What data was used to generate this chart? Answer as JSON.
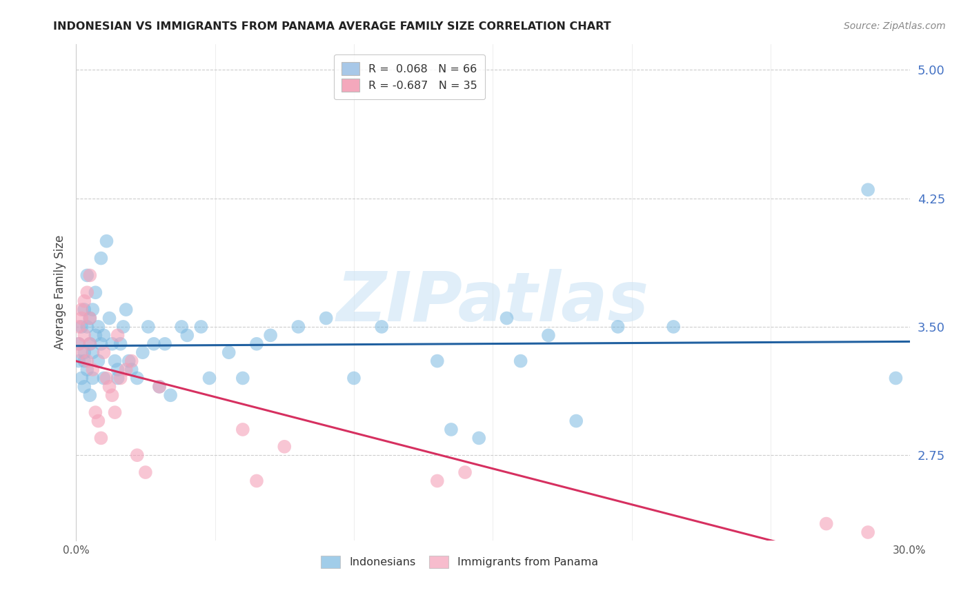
{
  "title": "INDONESIAN VS IMMIGRANTS FROM PANAMA AVERAGE FAMILY SIZE CORRELATION CHART",
  "source": "Source: ZipAtlas.com",
  "ylabel": "Average Family Size",
  "y_ticks": [
    2.75,
    3.5,
    4.25,
    5.0
  ],
  "y_tick_color": "#4472c4",
  "xlim": [
    0.0,
    0.3
  ],
  "ylim": [
    2.25,
    5.15
  ],
  "watermark": "ZIPatlas",
  "legend_entries": [
    {
      "label": "R =  0.068   N = 66",
      "color": "#a8c8e8"
    },
    {
      "label": "R = -0.687   N = 35",
      "color": "#f4a8bc"
    }
  ],
  "indonesian_color": "#7ab8e0",
  "panama_color": "#f4a0b8",
  "indonesian_line_color": "#2060a0",
  "panama_line_color": "#d63060",
  "background_color": "#ffffff",
  "grid_color": "#cccccc",
  "indonesian_x": [
    0.001,
    0.001,
    0.002,
    0.002,
    0.003,
    0.003,
    0.003,
    0.003,
    0.004,
    0.004,
    0.004,
    0.005,
    0.005,
    0.005,
    0.006,
    0.006,
    0.006,
    0.007,
    0.007,
    0.008,
    0.008,
    0.009,
    0.009,
    0.01,
    0.01,
    0.011,
    0.012,
    0.013,
    0.014,
    0.015,
    0.015,
    0.016,
    0.017,
    0.018,
    0.019,
    0.02,
    0.022,
    0.024,
    0.026,
    0.028,
    0.03,
    0.032,
    0.034,
    0.038,
    0.04,
    0.045,
    0.048,
    0.055,
    0.06,
    0.065,
    0.07,
    0.08,
    0.09,
    0.1,
    0.11,
    0.13,
    0.135,
    0.145,
    0.155,
    0.16,
    0.17,
    0.18,
    0.195,
    0.215,
    0.285,
    0.295
  ],
  "indonesian_y": [
    3.4,
    3.3,
    3.5,
    3.2,
    3.35,
    3.6,
    3.15,
    3.3,
    3.5,
    3.8,
    3.25,
    3.4,
    3.55,
    3.1,
    3.35,
    3.6,
    3.2,
    3.45,
    3.7,
    3.5,
    3.3,
    3.9,
    3.4,
    3.45,
    3.2,
    4.0,
    3.55,
    3.4,
    3.3,
    3.25,
    3.2,
    3.4,
    3.5,
    3.6,
    3.3,
    3.25,
    3.2,
    3.35,
    3.5,
    3.4,
    3.15,
    3.4,
    3.1,
    3.5,
    3.45,
    3.5,
    3.2,
    3.35,
    3.2,
    3.4,
    3.45,
    3.5,
    3.55,
    3.2,
    3.5,
    3.3,
    2.9,
    2.85,
    3.55,
    3.3,
    3.45,
    2.95,
    3.5,
    3.5,
    4.3,
    3.2
  ],
  "panama_x": [
    0.001,
    0.001,
    0.002,
    0.002,
    0.002,
    0.003,
    0.003,
    0.004,
    0.004,
    0.005,
    0.005,
    0.005,
    0.006,
    0.007,
    0.008,
    0.009,
    0.01,
    0.011,
    0.012,
    0.013,
    0.014,
    0.015,
    0.016,
    0.018,
    0.02,
    0.022,
    0.025,
    0.03,
    0.06,
    0.065,
    0.075,
    0.13,
    0.14,
    0.27,
    0.285
  ],
  "panama_y": [
    3.5,
    3.4,
    3.6,
    3.55,
    3.35,
    3.65,
    3.45,
    3.7,
    3.3,
    3.55,
    3.4,
    3.8,
    3.25,
    3.0,
    2.95,
    2.85,
    3.35,
    3.2,
    3.15,
    3.1,
    3.0,
    3.45,
    3.2,
    3.25,
    3.3,
    2.75,
    2.65,
    3.15,
    2.9,
    2.6,
    2.8,
    2.6,
    2.65,
    2.35,
    2.3
  ],
  "x_ticks_show": [
    0.0,
    0.3
  ],
  "x_tick_labels": [
    "0.0%",
    "30.0%"
  ],
  "x_tick_minor": [
    0.05,
    0.1,
    0.15,
    0.2,
    0.25
  ]
}
